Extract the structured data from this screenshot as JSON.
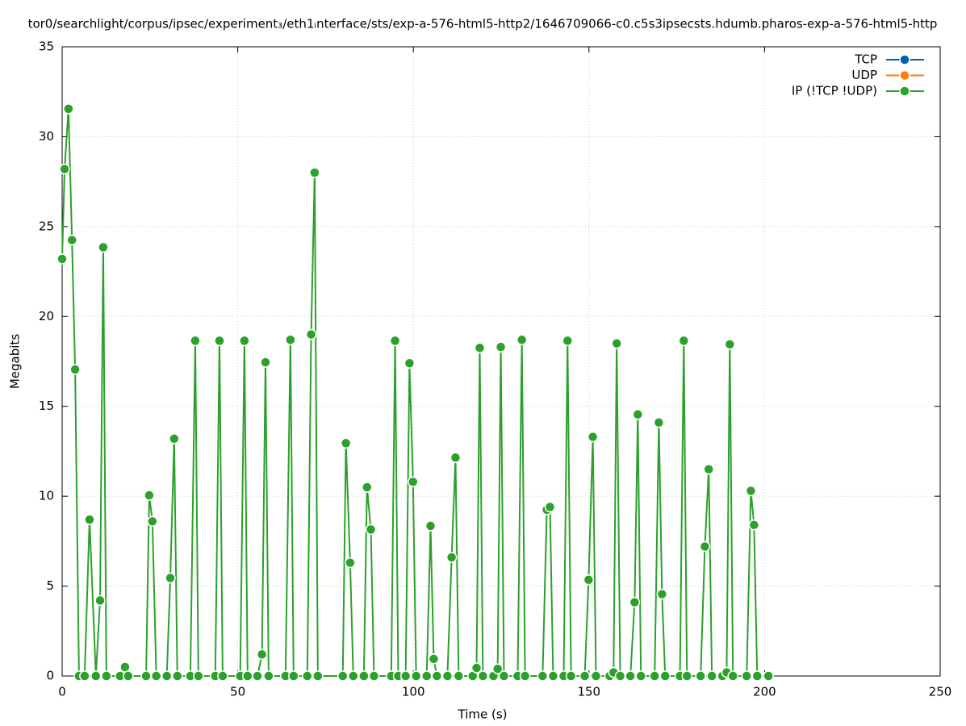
{
  "chart_data": {
    "type": "line",
    "title": "tor0/searchlight/corpus/ipsec/experiment₃/eth1ᵢnterface/sts/exp-a-576-html5-http2/1646709066-c0.c5s3ipsecsts.hdumb.pharos-exp-a-576-html5-http",
    "x_label": "Time (s)",
    "y_label": "Megabits",
    "xlim": [
      0,
      250
    ],
    "xticks": [
      0,
      50,
      100,
      150,
      200,
      250
    ],
    "ylim": [
      0,
      35
    ],
    "yticks": [
      0,
      5,
      10,
      15,
      20,
      25,
      30,
      35
    ],
    "grid": true,
    "legend": "top-right",
    "series": [
      {
        "name": "TCP",
        "color": "#0060ad",
        "x": [],
        "values": []
      },
      {
        "name": "UDP",
        "color": "#ff7f0e",
        "x": [],
        "values": []
      },
      {
        "name": "IP (!TCP  !UDP)",
        "color": "#2ca02c",
        "x": [
          0,
          0.7,
          1.8,
          2.8,
          3.7,
          4.8,
          6.4,
          7.8,
          9.6,
          10.8,
          11.7,
          12.6,
          16.5,
          17.9,
          18.8,
          23.9,
          24.8,
          25.7,
          26.8,
          29.8,
          30.8,
          31.9,
          32.8,
          36.5,
          37.9,
          38.8,
          43.6,
          44.8,
          45.7,
          50.7,
          51.9,
          52.8,
          55.6,
          56.9,
          57.9,
          58.8,
          63.6,
          65.0,
          65.9,
          69.8,
          70.9,
          71.9,
          72.8,
          79.9,
          80.8,
          82.0,
          82.9,
          85.9,
          86.8,
          87.9,
          88.8,
          93.7,
          94.8,
          95.7,
          97.8,
          98.9,
          99.9,
          100.8,
          103.8,
          104.9,
          105.8,
          106.7,
          109.7,
          110.9,
          112.0,
          112.9,
          116.9,
          118.0,
          118.9,
          119.8,
          122.8,
          124.0,
          124.9,
          125.8,
          129.7,
          130.9,
          131.8,
          136.8,
          138.0,
          138.9,
          139.8,
          142.8,
          143.9,
          144.9,
          148.8,
          149.9,
          151.1,
          152.0,
          155.9,
          157.0,
          157.9,
          158.9,
          161.8,
          163.0,
          163.9,
          164.8,
          168.7,
          169.9,
          170.8,
          171.7,
          175.9,
          177.0,
          177.9,
          181.8,
          183.0,
          184.1,
          185.0,
          188.0,
          189.2,
          190.1,
          191.0,
          194.9,
          196.1,
          197.0,
          197.9,
          201.1
        ],
        "values": [
          23.2,
          28.2,
          31.55,
          24.25,
          17.05,
          0,
          0,
          8.7,
          0,
          4.2,
          23.85,
          0,
          0,
          0.5,
          0,
          0,
          10.05,
          8.6,
          0,
          0,
          5.45,
          13.2,
          0,
          0,
          18.65,
          0,
          0,
          18.65,
          0,
          0,
          18.65,
          0,
          0,
          1.2,
          17.45,
          0,
          0,
          18.7,
          0,
          0,
          19,
          28,
          0,
          0,
          12.95,
          6.3,
          0,
          0,
          10.5,
          8.15,
          0,
          0,
          18.65,
          0,
          0,
          17.4,
          10.8,
          0,
          0,
          8.35,
          0.95,
          0,
          0,
          6.6,
          12.15,
          0,
          0,
          0.45,
          18.25,
          0,
          0,
          0.4,
          18.3,
          0,
          0,
          18.7,
          0,
          0,
          9.25,
          9.4,
          0,
          0,
          18.65,
          0,
          0,
          5.35,
          13.3,
          0,
          0,
          0.2,
          18.5,
          0,
          0,
          4.1,
          14.55,
          0,
          0,
          14.1,
          4.55,
          0,
          0,
          18.65,
          0,
          0,
          7.2,
          11.5,
          0,
          0,
          0.2,
          18.45,
          0,
          0,
          10.3,
          8.4,
          0,
          0
        ]
      }
    ]
  }
}
